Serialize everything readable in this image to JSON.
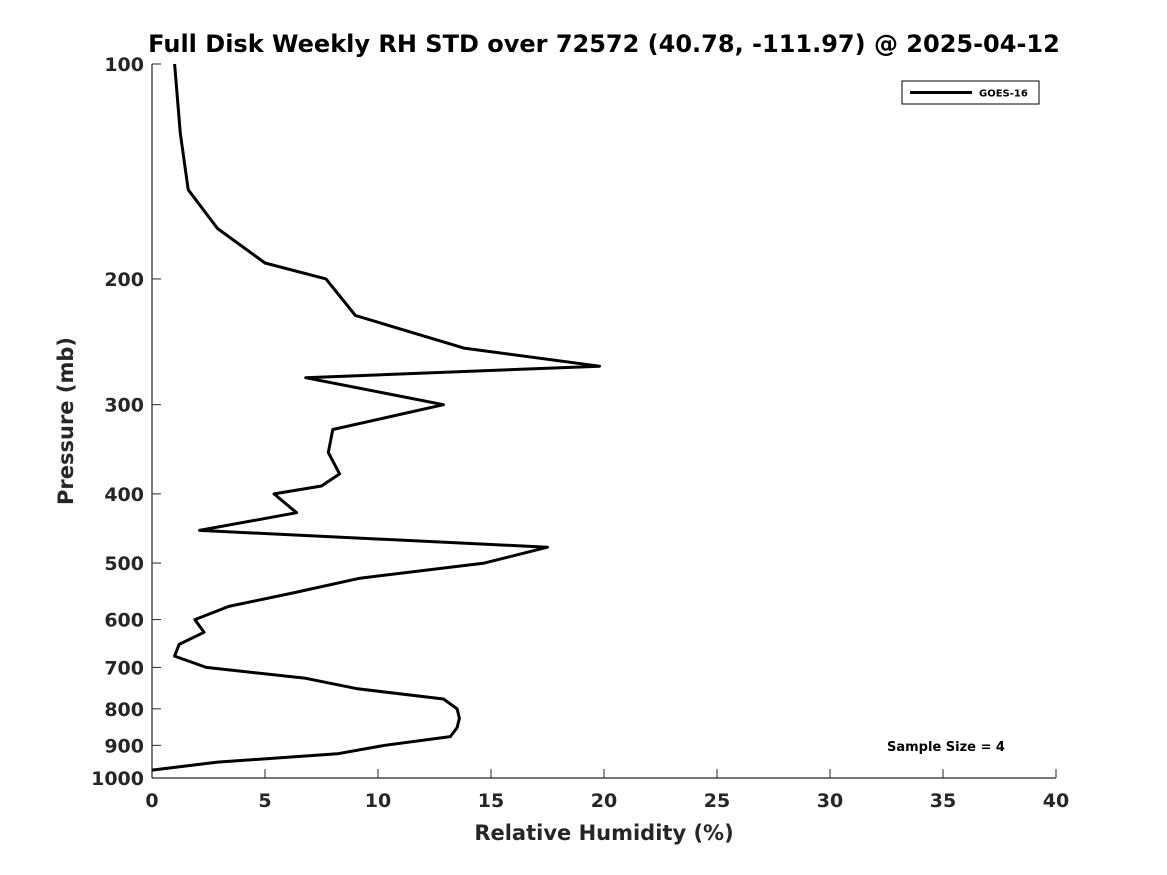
{
  "chart_data": {
    "type": "line",
    "title": "Full Disk Weekly RH STD over 72572 (40.78, -111.97) @ 2025-04-12",
    "xlabel": "Relative Humidity (%)",
    "ylabel": "Pressure (mb)",
    "xlim": [
      0,
      40
    ],
    "ylim": [
      1000,
      100
    ],
    "y_scale": "log",
    "grid": false,
    "legend_position": "top-right",
    "x_ticks": [
      0,
      5,
      10,
      15,
      20,
      25,
      30,
      35,
      40
    ],
    "y_ticks": [
      100,
      200,
      300,
      400,
      500,
      600,
      700,
      800,
      900,
      1000
    ],
    "series": [
      {
        "name": "GOES-16",
        "color": "#000000",
        "points": [
          {
            "x": 1.0,
            "y": 100
          },
          {
            "x": 1.25,
            "y": 125
          },
          {
            "x": 1.6,
            "y": 150
          },
          {
            "x": 2.9,
            "y": 170
          },
          {
            "x": 5.0,
            "y": 190
          },
          {
            "x": 7.7,
            "y": 200
          },
          {
            "x": 9.0,
            "y": 225
          },
          {
            "x": 13.8,
            "y": 250
          },
          {
            "x": 19.8,
            "y": 265
          },
          {
            "x": 6.8,
            "y": 275
          },
          {
            "x": 12.9,
            "y": 300
          },
          {
            "x": 8.0,
            "y": 325
          },
          {
            "x": 7.8,
            "y": 350
          },
          {
            "x": 8.3,
            "y": 375
          },
          {
            "x": 7.5,
            "y": 390
          },
          {
            "x": 5.4,
            "y": 400
          },
          {
            "x": 6.4,
            "y": 425
          },
          {
            "x": 2.1,
            "y": 450
          },
          {
            "x": 17.5,
            "y": 475
          },
          {
            "x": 14.7,
            "y": 500
          },
          {
            "x": 9.2,
            "y": 525
          },
          {
            "x": 6.3,
            "y": 550
          },
          {
            "x": 3.4,
            "y": 575
          },
          {
            "x": 1.9,
            "y": 600
          },
          {
            "x": 2.3,
            "y": 625
          },
          {
            "x": 1.2,
            "y": 650
          },
          {
            "x": 1.0,
            "y": 675
          },
          {
            "x": 2.4,
            "y": 700
          },
          {
            "x": 6.8,
            "y": 725
          },
          {
            "x": 9.1,
            "y": 750
          },
          {
            "x": 12.9,
            "y": 775
          },
          {
            "x": 13.5,
            "y": 800
          },
          {
            "x": 13.6,
            "y": 825
          },
          {
            "x": 13.5,
            "y": 850
          },
          {
            "x": 13.2,
            "y": 875
          },
          {
            "x": 10.3,
            "y": 900
          },
          {
            "x": 8.2,
            "y": 925
          },
          {
            "x": 2.9,
            "y": 950
          },
          {
            "x": 0.0,
            "y": 975
          }
        ]
      }
    ],
    "annotations": [
      {
        "text": "Sample Size = 4"
      }
    ]
  }
}
